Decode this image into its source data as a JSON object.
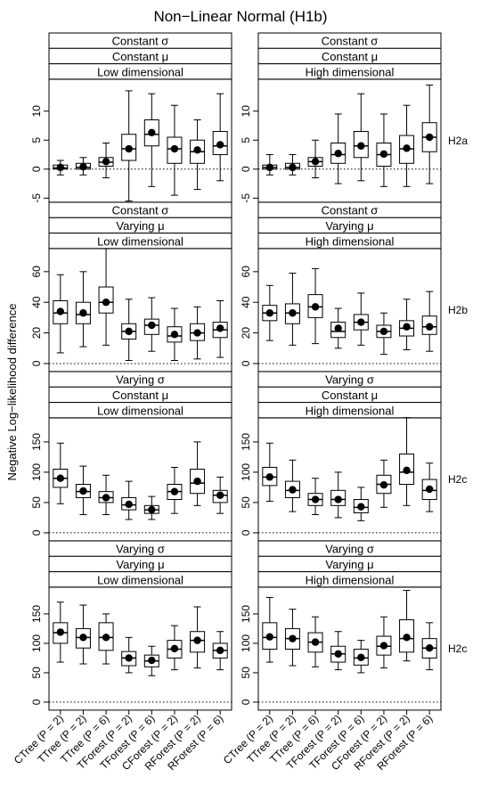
{
  "title": "Non−Linear Normal (H1b)",
  "y_label": "Negative Log−likelihood difference",
  "categories": [
    "CTree (P = 2)",
    "TTree (P = 2)",
    "TTree (P = 6)",
    "TForest (P = 2)",
    "TForest (P = 6)",
    "CForest (P = 2)",
    "RForest (P = 2)",
    "RForest (P = 6)"
  ],
  "chart_data": [
    {
      "type": "box",
      "strips": [
        "Constant σ",
        "Constant μ",
        "Low dimensional"
      ],
      "ylim": [
        -5.7,
        15.5
      ],
      "yticks": [
        -5,
        0,
        5,
        10
      ],
      "reference_line": 0,
      "whislo": [
        -1,
        -1,
        -1.5,
        -5.5,
        -3,
        -4.5,
        -3.5,
        -2
      ],
      "q1": [
        0,
        0,
        0.5,
        1.5,
        4,
        1,
        1,
        2.5
      ],
      "median": [
        0.2,
        0.3,
        1.2,
        3.5,
        6,
        3.5,
        3,
        4
      ],
      "q3": [
        0.7,
        1,
        2,
        6,
        8.5,
        5.5,
        5,
        6.5
      ],
      "whishi": [
        1.5,
        2,
        4.5,
        13.5,
        13,
        11,
        8.5,
        13
      ],
      "mean": [
        0.3,
        0.4,
        1.3,
        3.5,
        6.3,
        3.5,
        3.3,
        4.2
      ]
    },
    {
      "type": "box",
      "strips": [
        "Constant σ",
        "Constant μ",
        "High dimensional"
      ],
      "row_label": "H2a",
      "ylim": [
        -5.7,
        15.5
      ],
      "yticks": [
        -5,
        0,
        5,
        10
      ],
      "reference_line": 0,
      "whislo": [
        -1,
        -1,
        -1.5,
        -2.5,
        -2,
        -3,
        -3,
        -2.5
      ],
      "q1": [
        0,
        0,
        0.5,
        1,
        2,
        0.5,
        1,
        3
      ],
      "median": [
        0.3,
        0.3,
        1.3,
        2.5,
        4,
        2.5,
        3.5,
        5.5
      ],
      "q3": [
        0.7,
        1,
        2,
        4.5,
        6.5,
        4.5,
        5.8,
        8
      ],
      "whishi": [
        2.5,
        2.5,
        5,
        9.5,
        13,
        9.5,
        11,
        14.5
      ],
      "mean": [
        0.3,
        0.3,
        1.3,
        2.7,
        4,
        2.6,
        3.6,
        5.5
      ]
    },
    {
      "type": "box",
      "strips": [
        "Constant σ",
        "Varying μ",
        "Low dimensional"
      ],
      "ylim": [
        -5.2,
        75.1
      ],
      "yticks": [
        0,
        20,
        40,
        60
      ],
      "reference_line": 0,
      "whislo": [
        7,
        11,
        12,
        2,
        8,
        2,
        3,
        4
      ],
      "q1": [
        26,
        26,
        33,
        16,
        19,
        14,
        15,
        17
      ],
      "median": [
        33,
        32,
        40,
        21,
        25,
        18,
        20,
        22
      ],
      "q3": [
        41,
        40,
        50,
        26,
        29,
        24,
        26,
        27
      ],
      "whishi": [
        58,
        60,
        75,
        42,
        43,
        36,
        37,
        41
      ],
      "mean": [
        34,
        33,
        40,
        21,
        25,
        19,
        20,
        23
      ]
    },
    {
      "type": "box",
      "strips": [
        "Constant σ",
        "Varying μ",
        "High dimensional"
      ],
      "row_label": "H2b",
      "ylim": [
        -5.2,
        75.1
      ],
      "yticks": [
        0,
        20,
        40,
        60
      ],
      "reference_line": 0,
      "whislo": [
        15,
        12,
        13,
        10,
        12,
        6,
        9,
        8
      ],
      "q1": [
        28,
        26,
        30,
        17,
        22,
        17,
        18,
        19
      ],
      "median": [
        33,
        33,
        37,
        21,
        27,
        21,
        23,
        24
      ],
      "q3": [
        38,
        39,
        45,
        27,
        32,
        25,
        28,
        31
      ],
      "whishi": [
        51,
        59,
        62,
        36,
        46,
        33,
        42,
        47
      ],
      "mean": [
        33,
        33,
        37,
        23,
        27,
        21,
        24,
        24
      ]
    },
    {
      "type": "box",
      "strips": [
        "Varying σ",
        "Constant μ",
        "Low dimensional"
      ],
      "ylim": [
        -13.2,
        189.7
      ],
      "yticks": [
        0,
        50,
        100,
        150
      ],
      "reference_line": 0,
      "whislo": [
        48,
        30,
        30,
        22,
        22,
        32,
        45,
        32
      ],
      "q1": [
        75,
        58,
        50,
        38,
        32,
        55,
        65,
        50
      ],
      "median": [
        90,
        68,
        58,
        46,
        38,
        68,
        82,
        62
      ],
      "q3": [
        105,
        80,
        68,
        58,
        45,
        80,
        105,
        70
      ],
      "whishi": [
        148,
        110,
        95,
        85,
        60,
        108,
        150,
        92
      ],
      "mean": [
        90,
        69,
        58,
        47,
        38,
        68,
        85,
        62
      ]
    },
    {
      "type": "box",
      "strips": [
        "Varying σ",
        "Constant μ",
        "High dimensional"
      ],
      "row_label": "H2c",
      "ylim": [
        -13.2,
        189.7
      ],
      "yticks": [
        0,
        50,
        100,
        150
      ],
      "reference_line": 0,
      "whislo": [
        52,
        35,
        30,
        25,
        20,
        42,
        45,
        35
      ],
      "q1": [
        78,
        58,
        45,
        45,
        33,
        65,
        80,
        55
      ],
      "median": [
        92,
        70,
        55,
        55,
        42,
        80,
        100,
        70
      ],
      "q3": [
        108,
        85,
        65,
        70,
        55,
        95,
        130,
        88
      ],
      "whishi": [
        148,
        120,
        90,
        100,
        75,
        120,
        190,
        115
      ],
      "mean": [
        92,
        71,
        55,
        55,
        43,
        79,
        103,
        72
      ]
    },
    {
      "type": "box",
      "strips": [
        "Varying σ",
        "Varying μ",
        "Low dimensional"
      ],
      "ylim": [
        -13.6,
        195.5
      ],
      "yticks": [
        0,
        50,
        100,
        150
      ],
      "reference_line": 0,
      "whislo": [
        68,
        65,
        65,
        50,
        45,
        55,
        58,
        55
      ],
      "q1": [
        100,
        92,
        88,
        62,
        60,
        75,
        85,
        75
      ],
      "median": [
        118,
        110,
        110,
        75,
        70,
        90,
        105,
        88
      ],
      "q3": [
        135,
        125,
        135,
        86,
        80,
        105,
        120,
        100
      ],
      "whishi": [
        170,
        165,
        150,
        110,
        95,
        130,
        162,
        120
      ],
      "mean": [
        119,
        110,
        110,
        75,
        71,
        91,
        105,
        88
      ]
    },
    {
      "type": "box",
      "strips": [
        "Varying σ",
        "Varying μ",
        "High dimensional"
      ],
      "row_label": "H2c",
      "ylim": [
        -13.6,
        195.5
      ],
      "yticks": [
        0,
        50,
        100,
        150
      ],
      "reference_line": 0,
      "whislo": [
        68,
        62,
        60,
        55,
        50,
        58,
        70,
        55
      ],
      "q1": [
        90,
        90,
        85,
        68,
        63,
        80,
        85,
        75
      ],
      "median": [
        110,
        108,
        102,
        82,
        75,
        95,
        108,
        92
      ],
      "q3": [
        135,
        125,
        118,
        95,
        90,
        112,
        140,
        108
      ],
      "whishi": [
        178,
        158,
        145,
        120,
        105,
        145,
        190,
        135
      ],
      "mean": [
        111,
        108,
        102,
        82,
        76,
        96,
        110,
        92
      ]
    }
  ]
}
